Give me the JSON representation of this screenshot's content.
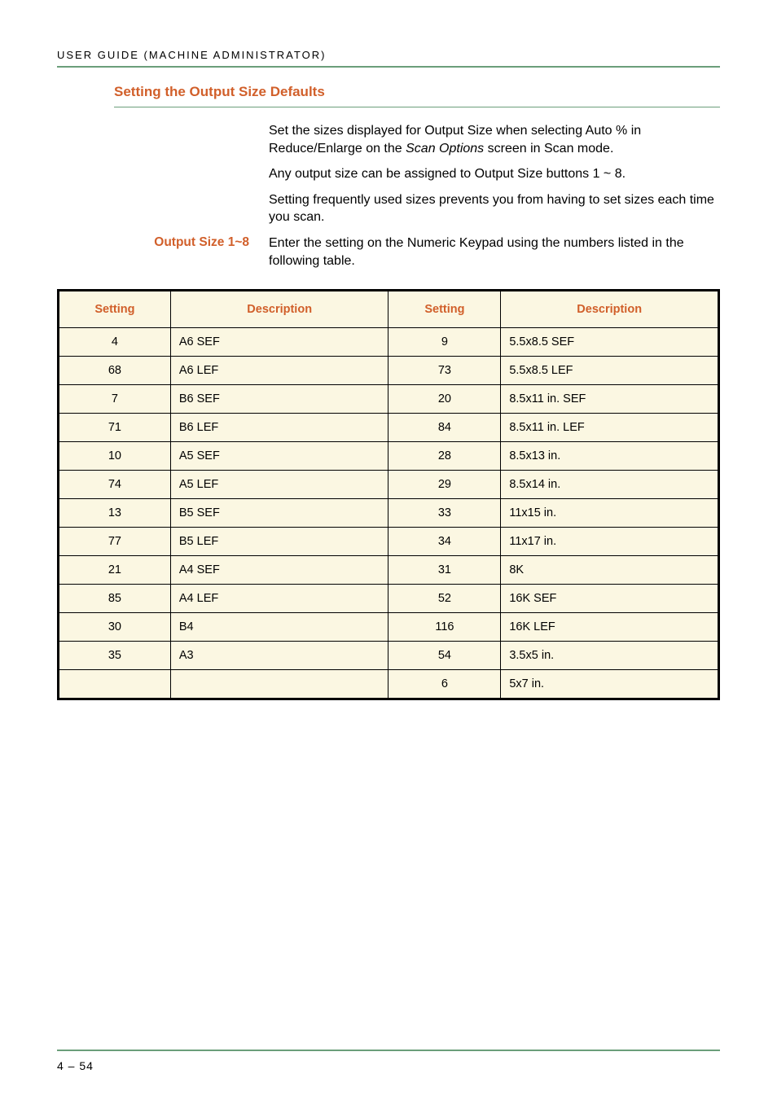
{
  "runningHead": "USER GUIDE (MACHINE ADMINISTRATOR)",
  "section": {
    "heading": "Setting the Output Size Defaults",
    "paras": [
      "Set the sizes displayed for Output Size when selecting Auto % in Reduce/Enlarge on the Scan Options screen in Scan mode.",
      "Any output size can be assigned to Output Size buttons 1 ~ 8.",
      "Setting frequently used sizes prevents you from having to set sizes each time you scan."
    ],
    "sideLabel": "Output Size 1~8",
    "sideText": "Enter the setting on the Numeric Keypad using the numbers listed in the following table."
  },
  "table": {
    "headers": [
      "Setting",
      "Description",
      "Setting",
      "Description"
    ],
    "header_color": "#d15f2a",
    "header_bg": "#fbf7e2",
    "cell_bg": "#fbf7e2",
    "border_color": "#000000",
    "rows": [
      [
        "4",
        "A6 SEF",
        "9",
        "5.5x8.5 SEF"
      ],
      [
        "68",
        "A6 LEF",
        "73",
        "5.5x8.5 LEF"
      ],
      [
        "7",
        "B6 SEF",
        "20",
        "8.5x11 in. SEF"
      ],
      [
        "71",
        "B6 LEF",
        "84",
        "8.5x11 in. LEF"
      ],
      [
        "10",
        "A5 SEF",
        "28",
        "8.5x13 in."
      ],
      [
        "74",
        "A5 LEF",
        "29",
        "8.5x14 in."
      ],
      [
        "13",
        "B5 SEF",
        "33",
        "11x15 in."
      ],
      [
        "77",
        "B5 LEF",
        "34",
        "11x17 in."
      ],
      [
        "21",
        "A4 SEF",
        "31",
        "8K"
      ],
      [
        "85",
        "A4 LEF",
        "52",
        "16K SEF"
      ],
      [
        "30",
        "B4",
        "116",
        "16K LEF"
      ],
      [
        "35",
        "A3",
        "54",
        "3.5x5 in."
      ],
      [
        "",
        "",
        "6",
        "5x7 in."
      ]
    ]
  },
  "footer": "4 – 54",
  "colors": {
    "accent_green": "#6b9e7a",
    "accent_orange": "#d15f2a",
    "cream": "#fbf7e2",
    "text": "#000000",
    "bg": "#ffffff"
  }
}
